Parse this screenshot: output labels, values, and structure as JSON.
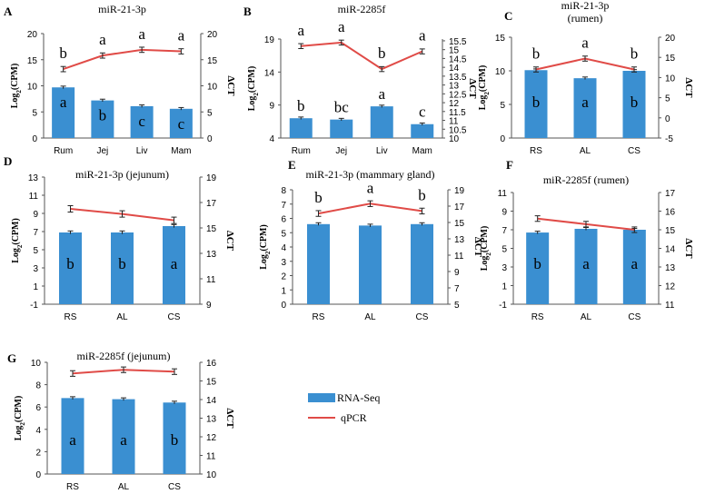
{
  "chart_data": [
    {
      "panel": "A",
      "title": "miR-21-3p",
      "type": "bar",
      "categories": [
        "Rum",
        "Jej",
        "Liv",
        "Mam"
      ],
      "series": [
        {
          "name": "RNA-Seq",
          "values": [
            9.7,
            7.2,
            6.1,
            5.6
          ]
        },
        {
          "name": "qPCR",
          "values": [
            13.2,
            15.8,
            16.9,
            16.6
          ]
        }
      ],
      "ylabel": "Log2(CPM)",
      "y2label": "ΔCT",
      "ylim": [
        0,
        20
      ],
      "y2lim": [
        0,
        20
      ],
      "yticks": [
        0,
        5,
        10,
        15,
        20
      ],
      "y2ticks": [
        0,
        5,
        10,
        15,
        20
      ],
      "bar_letters": [
        "a",
        "b",
        "c",
        "c"
      ],
      "line_letters": [
        "b",
        "a",
        "a",
        "a"
      ]
    },
    {
      "panel": "B",
      "title": "miR-2285f",
      "type": "bar",
      "categories": [
        "Rum",
        "Jej",
        "Liv",
        "Mam"
      ],
      "series": [
        {
          "name": "RNA-Seq",
          "values": [
            7.0,
            6.8,
            8.8,
            6.1
          ]
        },
        {
          "name": "qPCR",
          "values": [
            15.2,
            15.4,
            13.9,
            14.9
          ]
        }
      ],
      "ylabel": "Log2(CPM)",
      "y2label": "ΔCT",
      "ylim": [
        4,
        19
      ],
      "y2lim": [
        10,
        15.6
      ],
      "yticks": [
        4,
        9,
        14,
        19
      ],
      "y2ticks": [
        10,
        10.5,
        11,
        11.5,
        12,
        12.5,
        13,
        13.5,
        14,
        14.5,
        15,
        15.5
      ],
      "bar_letters": [
        "b",
        "bc",
        "a",
        "c"
      ],
      "line_letters": [
        "a",
        "a",
        "b",
        "a"
      ]
    },
    {
      "panel": "C",
      "title": "miR-21-3p",
      "subtitle": "(rumen)",
      "type": "bar",
      "categories": [
        "RS",
        "AL",
        "CS"
      ],
      "series": [
        {
          "name": "RNA-Seq",
          "values": [
            10.1,
            8.9,
            10.0
          ]
        },
        {
          "name": "qPCR",
          "values": [
            12.0,
            14.7,
            12.0
          ]
        }
      ],
      "ylabel": "Log2(CPM)",
      "y2label": "ΔCT",
      "ylim": [
        0,
        15
      ],
      "y2lim": [
        -5,
        20
      ],
      "yticks": [
        0,
        5,
        10,
        15
      ],
      "y2ticks": [
        -5,
        0,
        5,
        10,
        15,
        20
      ],
      "bar_letters": [
        "b",
        "a",
        "b"
      ],
      "line_letters": [
        "b",
        "a",
        "b"
      ]
    },
    {
      "panel": "D",
      "title": "miR-21-3p (jejunum)",
      "type": "bar",
      "categories": [
        "RS",
        "AL",
        "CS"
      ],
      "series": [
        {
          "name": "RNA-Seq",
          "values": [
            6.9,
            6.9,
            7.6
          ]
        },
        {
          "name": "qPCR",
          "values": [
            16.5,
            16.1,
            15.6
          ]
        }
      ],
      "ylabel": "Log2(CPM)",
      "y2label": "ΔCT",
      "ylim": [
        -1,
        13
      ],
      "y2lim": [
        9,
        19
      ],
      "yticks": [
        -1,
        1,
        3,
        5,
        7,
        9,
        11,
        13
      ],
      "y2ticks": [
        9,
        11,
        13,
        15,
        17,
        19
      ],
      "bar_letters": [
        "b",
        "b",
        "a"
      ],
      "line_letters": []
    },
    {
      "panel": "E",
      "title": "miR-21-3p (mammary gland)",
      "type": "bar",
      "categories": [
        "RS",
        "AL",
        "CS"
      ],
      "series": [
        {
          "name": "RNA-Seq",
          "values": [
            5.6,
            5.5,
            5.6
          ]
        },
        {
          "name": "qPCR",
          "values": [
            16.1,
            17.3,
            16.4
          ]
        }
      ],
      "ylabel": "Log2(CPM)",
      "y2label": "ΔCT",
      "ylim": [
        0,
        8
      ],
      "y2lim": [
        5,
        19
      ],
      "yticks": [
        0,
        1,
        2,
        3,
        4,
        5,
        6,
        7,
        8
      ],
      "y2ticks": [
        5,
        7,
        9,
        11,
        13,
        15,
        17,
        19
      ],
      "bar_letters": [],
      "line_letters": [
        "b",
        "a",
        "b"
      ]
    },
    {
      "panel": "F",
      "title": "miR-2285f  (rumen)",
      "type": "bar",
      "categories": [
        "RS",
        "AL",
        "CS"
      ],
      "series": [
        {
          "name": "RNA-Seq",
          "values": [
            6.7,
            7.1,
            7.0
          ]
        },
        {
          "name": "qPCR",
          "values": [
            15.6,
            15.3,
            15.0
          ]
        }
      ],
      "ylabel": "Log2(CPM)",
      "y2label": "ΔCT",
      "ylim": [
        -1,
        11
      ],
      "y2lim": [
        11,
        17
      ],
      "yticks": [
        -1,
        1,
        3,
        5,
        7,
        9,
        11
      ],
      "y2ticks": [
        11,
        12,
        13,
        14,
        15,
        16,
        17
      ],
      "bar_letters": [
        "b",
        "a",
        "a"
      ],
      "line_letters": []
    },
    {
      "panel": "G",
      "title": "miR-2285f  (jejunum)",
      "type": "bar",
      "categories": [
        "RS",
        "AL",
        "CS"
      ],
      "series": [
        {
          "name": "RNA-Seq",
          "values": [
            6.8,
            6.7,
            6.4
          ]
        },
        {
          "name": "qPCR",
          "values": [
            15.4,
            15.6,
            15.5
          ]
        }
      ],
      "ylabel": "Log2(CPM)",
      "y2label": "ΔCT",
      "ylim": [
        0,
        10
      ],
      "y2lim": [
        10,
        16
      ],
      "yticks": [
        0,
        2,
        4,
        6,
        8,
        10
      ],
      "y2ticks": [
        10,
        11,
        12,
        13,
        14,
        15,
        16
      ],
      "bar_letters": [
        "a",
        "a",
        "b"
      ],
      "line_letters": []
    }
  ],
  "legend": {
    "items": [
      {
        "label": "RNA-Seq",
        "color": "#3a8fd1"
      },
      {
        "label": "qPCR",
        "color": "#e04b47"
      }
    ]
  },
  "colors": {
    "bar": "#3a8fd1",
    "line": "#e04b47",
    "error": "#222222"
  }
}
